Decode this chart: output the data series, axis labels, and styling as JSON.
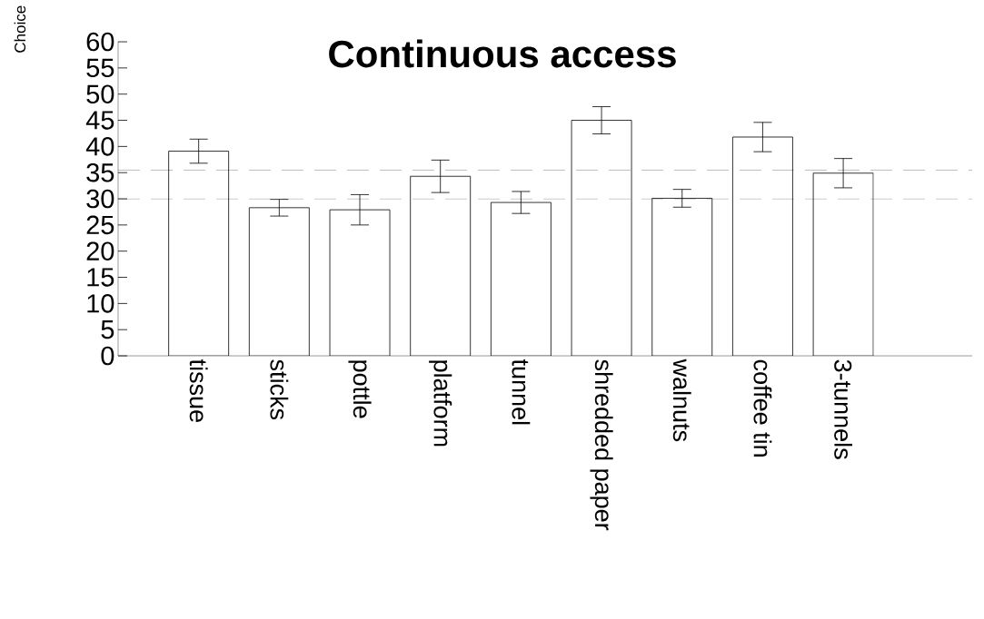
{
  "chart_data": {
    "type": "bar",
    "title": "Continuous access",
    "ylabel": "Choice",
    "categories": [
      "tissue",
      "sticks",
      "pottle",
      "platform",
      "tunnel",
      "shredded paper",
      "walnuts",
      "coffee tin",
      "3-tunnels"
    ],
    "values": [
      39.1,
      28.3,
      27.9,
      34.3,
      29.3,
      45.0,
      30.1,
      41.8,
      34.9
    ],
    "errors": [
      2.3,
      1.6,
      2.9,
      3.1,
      2.1,
      2.6,
      1.7,
      2.8,
      2.8
    ],
    "color": "#ffffff",
    "ylim": [
      0,
      60
    ],
    "yticks": [
      0,
      5,
      10,
      15,
      20,
      25,
      30,
      35,
      40,
      45,
      50,
      55,
      60
    ],
    "ref_lines": [
      {
        "axis": "y",
        "value": 35.5,
        "line_style": "dashed"
      },
      {
        "axis": "y",
        "value": 30,
        "line_style": "dashed"
      }
    ],
    "grid": false
  }
}
